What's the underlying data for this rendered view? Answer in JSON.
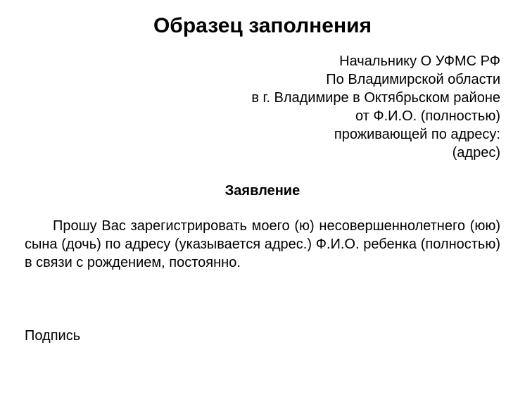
{
  "title": "Образец заполнения",
  "addressee": {
    "line1": "Начальнику О УФМС РФ",
    "line2": "По Владимирской области",
    "line3": "в г. Владимире в Октябрьском районе",
    "line4": "от Ф.И.О. (полностью)",
    "line5": "проживающей по адресу:",
    "line6": "(адрес)"
  },
  "applicationTitle": "Заявление",
  "bodyText": "Прошу Вас зарегистрировать моего (ю) несовершеннолетнего (юю) сына (дочь) по адресу (указывается адрес.) Ф.И.О. ребенка (полностью) в связи с рождением, постоянно.",
  "signature": "Подпись",
  "colors": {
    "background": "#ffffff",
    "text": "#000000"
  },
  "typography": {
    "titleFontSize": 30,
    "bodyFontSize": 20,
    "titleFontWeight": "bold",
    "applicationTitleFontWeight": "bold"
  }
}
